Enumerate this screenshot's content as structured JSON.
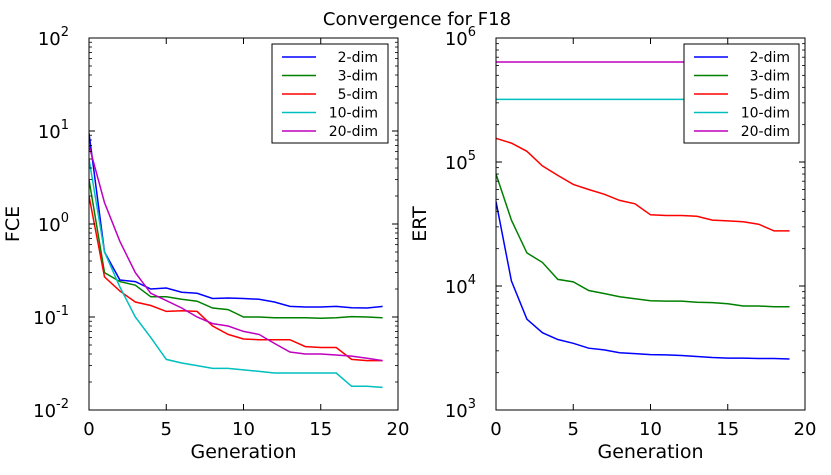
{
  "figure": {
    "title": "Convergence for F18"
  },
  "chart_data": [
    {
      "type": "line",
      "title": "",
      "xlabel": "Generation",
      "ylabel": "FCE",
      "xlim": [
        0,
        20
      ],
      "ylim": [
        0.01,
        100
      ],
      "yscale": "log",
      "xticks": [
        "0",
        "5",
        "10",
        "15",
        "20"
      ],
      "yticks": [
        {
          "base": "10",
          "exp": "-2"
        },
        {
          "base": "10",
          "exp": "-1"
        },
        {
          "base": "10",
          "exp": "0"
        },
        {
          "base": "10",
          "exp": "1"
        },
        {
          "base": "10",
          "exp": "2"
        }
      ],
      "legend_position": "top-right",
      "grid": false,
      "series": [
        {
          "name": "2-dim",
          "color": "#0000ff",
          "x": [
            0,
            1,
            2,
            3,
            4,
            5,
            6,
            7,
            8,
            9,
            10,
            11,
            12,
            13,
            14,
            15,
            16,
            17,
            18,
            19
          ],
          "values": [
            9.5,
            0.5,
            0.25,
            0.24,
            0.2,
            0.205,
            0.185,
            0.18,
            0.158,
            0.16,
            0.158,
            0.155,
            0.145,
            0.13,
            0.128,
            0.128,
            0.13,
            0.126,
            0.125,
            0.13
          ]
        },
        {
          "name": "3-dim",
          "color": "#008000",
          "x": [
            0,
            1,
            2,
            3,
            4,
            5,
            6,
            7,
            8,
            9,
            10,
            11,
            12,
            13,
            14,
            15,
            16,
            17,
            18,
            19
          ],
          "values": [
            3.0,
            0.3,
            0.24,
            0.22,
            0.165,
            0.165,
            0.155,
            0.148,
            0.125,
            0.12,
            0.1,
            0.1,
            0.098,
            0.098,
            0.098,
            0.097,
            0.098,
            0.101,
            0.1,
            0.098
          ]
        },
        {
          "name": "5-dim",
          "color": "#ff0000",
          "x": [
            0,
            1,
            2,
            3,
            4,
            5,
            6,
            7,
            8,
            9,
            10,
            11,
            12,
            13,
            14,
            15,
            16,
            17,
            18,
            19
          ],
          "values": [
            2.0,
            0.27,
            0.19,
            0.145,
            0.133,
            0.115,
            0.117,
            0.115,
            0.08,
            0.065,
            0.058,
            0.057,
            0.057,
            0.057,
            0.048,
            0.047,
            0.047,
            0.035,
            0.034,
            0.034
          ]
        },
        {
          "name": "10-dim",
          "color": "#00bfbf",
          "x": [
            0,
            1,
            2,
            3,
            4,
            5,
            6,
            7,
            8,
            9,
            10,
            11,
            12,
            13,
            14,
            15,
            16,
            17,
            18,
            19
          ],
          "values": [
            5.0,
            0.5,
            0.21,
            0.1,
            0.06,
            0.035,
            0.032,
            0.03,
            0.028,
            0.028,
            0.027,
            0.026,
            0.025,
            0.025,
            0.025,
            0.025,
            0.025,
            0.018,
            0.018,
            0.0175
          ]
        },
        {
          "name": "20-dim",
          "color": "#bf00bf",
          "x": [
            0,
            1,
            2,
            3,
            4,
            5,
            6,
            7,
            8,
            9,
            10,
            11,
            12,
            13,
            14,
            15,
            16,
            17,
            18,
            19
          ],
          "values": [
            7.0,
            1.7,
            0.65,
            0.3,
            0.18,
            0.15,
            0.125,
            0.1,
            0.085,
            0.08,
            0.07,
            0.065,
            0.052,
            0.042,
            0.04,
            0.04,
            0.039,
            0.038,
            0.036,
            0.034
          ]
        }
      ]
    },
    {
      "type": "line",
      "title": "",
      "xlabel": "Generation",
      "ylabel": "ERT",
      "xlim": [
        0,
        20
      ],
      "ylim": [
        1000,
        1000000
      ],
      "yscale": "log",
      "xticks": [
        "0",
        "5",
        "10",
        "15",
        "20"
      ],
      "yticks": [
        {
          "base": "10",
          "exp": "3"
        },
        {
          "base": "10",
          "exp": "4"
        },
        {
          "base": "10",
          "exp": "5"
        },
        {
          "base": "10",
          "exp": "6"
        }
      ],
      "legend_position": "top-right",
      "grid": false,
      "series": [
        {
          "name": "2-dim",
          "color": "#0000ff",
          "x": [
            0,
            1,
            2,
            3,
            4,
            5,
            6,
            7,
            8,
            9,
            10,
            11,
            12,
            13,
            14,
            15,
            16,
            17,
            18,
            19
          ],
          "values": [
            48000,
            11000,
            5400,
            4200,
            3700,
            3450,
            3150,
            3050,
            2900,
            2850,
            2800,
            2780,
            2750,
            2700,
            2650,
            2620,
            2620,
            2600,
            2600,
            2580
          ]
        },
        {
          "name": "3-dim",
          "color": "#008000",
          "x": [
            0,
            1,
            2,
            3,
            4,
            5,
            6,
            7,
            8,
            9,
            10,
            11,
            12,
            13,
            14,
            15,
            16,
            17,
            18,
            19
          ],
          "values": [
            80000,
            34000,
            18500,
            15500,
            11300,
            10800,
            9200,
            8700,
            8200,
            7900,
            7600,
            7550,
            7550,
            7400,
            7350,
            7200,
            6900,
            6900,
            6800,
            6800
          ]
        },
        {
          "name": "5-dim",
          "color": "#ff0000",
          "x": [
            0,
            1,
            2,
            3,
            4,
            5,
            6,
            7,
            8,
            9,
            10,
            11,
            12,
            13,
            14,
            15,
            16,
            17,
            18,
            19
          ],
          "values": [
            155000,
            142000,
            122000,
            93000,
            78000,
            66000,
            60000,
            55000,
            49000,
            46000,
            37500,
            37000,
            37000,
            36500,
            34000,
            33500,
            33000,
            31500,
            27800,
            27800
          ]
        },
        {
          "name": "10-dim",
          "color": "#00bfbf",
          "x": [
            0,
            1,
            2,
            3,
            4,
            5,
            6,
            7,
            8,
            9,
            10,
            11,
            12,
            13,
            14,
            15,
            16,
            17,
            18,
            19
          ],
          "values": [
            320000,
            320000,
            320000,
            320000,
            320000,
            320000,
            320000,
            320000,
            320000,
            320000,
            320000,
            320000,
            320000,
            320000,
            320000,
            320000,
            320000,
            320000,
            320000,
            320000
          ]
        },
        {
          "name": "20-dim",
          "color": "#bf00bf",
          "x": [
            0,
            1,
            2,
            3,
            4,
            5,
            6,
            7,
            8,
            9,
            10,
            11,
            12,
            13,
            14,
            15,
            16,
            17,
            18,
            19
          ],
          "values": [
            640000,
            640000,
            640000,
            640000,
            640000,
            640000,
            640000,
            640000,
            640000,
            640000,
            640000,
            640000,
            640000,
            640000,
            640000,
            640000,
            640000,
            640000,
            640000,
            640000
          ]
        }
      ]
    }
  ]
}
